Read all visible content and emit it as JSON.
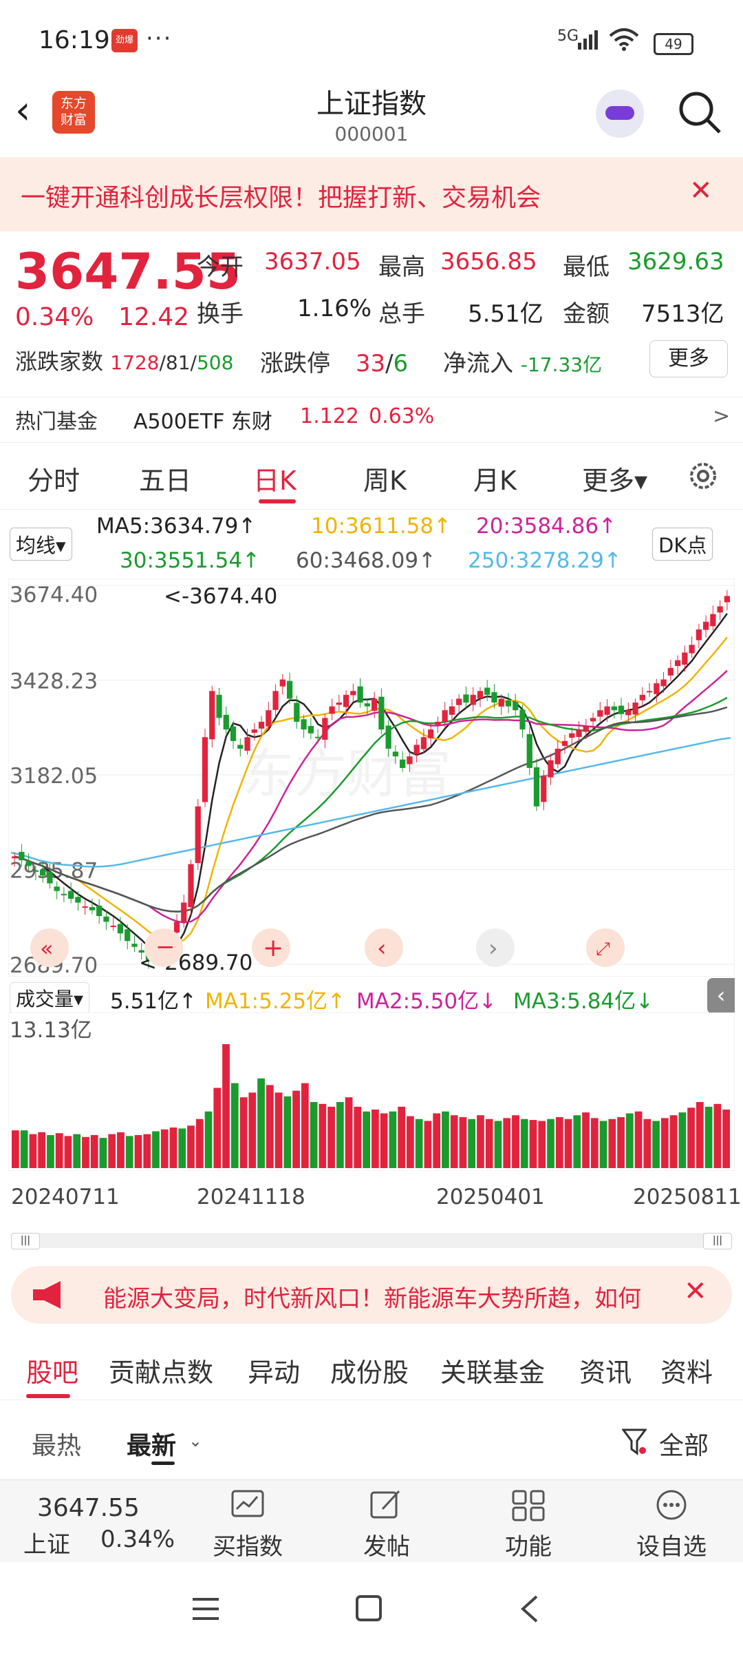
{
  "status": {
    "time": "16:19",
    "notif_badge": "劲爆",
    "dots": "···",
    "network": "5G",
    "battery": "49"
  },
  "header": {
    "title": "上证指数",
    "code": "000001",
    "logo": "东方\n财富"
  },
  "promo": {
    "text": "一键开通科创成长层权限！把握打新、交易机会"
  },
  "quote": {
    "price": "3647.55",
    "pct": "0.34%",
    "change": "12.42",
    "open_label": "今开",
    "open": "3637.05",
    "high_label": "最高",
    "high": "3656.85",
    "low_label": "最低",
    "low": "3629.63",
    "turnover_label": "换手",
    "turnover": "1.16%",
    "volume_label": "总手",
    "volume": "5.51亿",
    "amount_label": "金额",
    "amount": "7513亿",
    "breadth_label": "涨跌家数",
    "up": "1728",
    "flat": "81",
    "down": "508",
    "limit_label": "涨跌停",
    "limit_up": "33",
    "limit_down": "6",
    "netflow_label": "净流入",
    "netflow": "-17.33亿",
    "more": "更多"
  },
  "fund": {
    "label": "热门基金",
    "name": "A500ETF 东财",
    "price": "1.122",
    "pct": "0.63%",
    "arrow": ">"
  },
  "tabs": [
    "分时",
    "五日",
    "日K",
    "周K",
    "月K",
    "更多▾"
  ],
  "ma": {
    "selector": "均线▾",
    "ma5": "MA5:3634.79↑",
    "ma10": "10:3611.58↑",
    "ma20": "20:3584.86↑",
    "ma30": "30:3551.54↑",
    "ma60": "60:3468.09↑",
    "ma250": "250:3278.29↑",
    "dk": "DK点"
  },
  "chart_data": {
    "type": "candlestick",
    "y_ticks": [
      "3674.40",
      "3428.23",
      "3182.05",
      "2935.87",
      "2689.70"
    ],
    "ylim": [
      2689.7,
      3674.4
    ],
    "max_label": "<-3674.40",
    "min_label": "<-2689.70",
    "x_ticks": [
      "20240711",
      "20241118",
      "20250401",
      "20250811"
    ],
    "watermark": "东方财富",
    "close": [
      2970,
      2960,
      2945,
      2930,
      2920,
      2900,
      2880,
      2870,
      2860,
      2850,
      2840,
      2830,
      2815,
      2800,
      2790,
      2770,
      2750,
      2735,
      2720,
      2700,
      2710,
      2730,
      2760,
      2800,
      2850,
      2950,
      3100,
      3280,
      3400,
      3330,
      3300,
      3270,
      3250,
      3280,
      3300,
      3320,
      3350,
      3400,
      3430,
      3380,
      3320,
      3300,
      3290,
      3280,
      3330,
      3360,
      3370,
      3390,
      3400,
      3370,
      3360,
      3380,
      3300,
      3250,
      3230,
      3200,
      3230,
      3260,
      3280,
      3300,
      3320,
      3350,
      3360,
      3380,
      3370,
      3390,
      3400,
      3390,
      3370,
      3380,
      3360,
      3350,
      3300,
      3200,
      3100,
      3180,
      3220,
      3250,
      3270,
      3290,
      3300,
      3310,
      3330,
      3350,
      3360,
      3350,
      3340,
      3350,
      3370,
      3390,
      3400,
      3420,
      3430,
      3460,
      3480,
      3500,
      3520,
      3560,
      3580,
      3600,
      3620,
      3647
    ],
    "ma250": [
      2980,
      2975,
      2968,
      2960,
      2955,
      2950,
      2948,
      2946,
      2944,
      2943,
      2944,
      2946,
      2950,
      2955,
      2960,
      2965,
      2970,
      2975,
      2980,
      2985,
      2990,
      2995,
      3000,
      3005,
      3010,
      3015,
      3020,
      3025,
      3030,
      3035,
      3040,
      3045,
      3050,
      3055,
      3060,
      3065,
      3070,
      3075,
      3080,
      3085,
      3090,
      3095,
      3100,
      3105,
      3110,
      3115,
      3120,
      3125,
      3130,
      3135,
      3140,
      3145,
      3150,
      3155,
      3160,
      3165,
      3170,
      3175,
      3180,
      3185,
      3190,
      3195,
      3200,
      3205,
      3210,
      3215,
      3220,
      3225,
      3230,
      3235,
      3240,
      3245,
      3250,
      3255,
      3260,
      3265,
      3270,
      3275,
      3278
    ]
  },
  "vol": {
    "selector": "成交量▾",
    "current": "5.51亿↑",
    "ma1": "MA1:5.25亿↑",
    "ma2": "MA2:5.50亿↓",
    "ma3": "MA3:5.84亿↓",
    "max": "13.13亿",
    "values": [
      4,
      4,
      3.6,
      3.8,
      3.5,
      3.7,
      3.4,
      3.6,
      3.3,
      3.5,
      3.2,
      3.6,
      3.8,
      3.4,
      3.5,
      3.6,
      3.9,
      4.1,
      4.3,
      4.2,
      4.5,
      5.2,
      6,
      8.5,
      13.13,
      9,
      7.5,
      8,
      9.5,
      8.8,
      8,
      7.6,
      8.2,
      9,
      7,
      6.8,
      6.5,
      7,
      7.5,
      6.5,
      6,
      6.2,
      5.8,
      6,
      6.5,
      5.5,
      5.2,
      5,
      5.8,
      6,
      5.6,
      5.4,
      5.2,
      5.6,
      5.2,
      5,
      5.3,
      5.6,
      5.2,
      5.1,
      5,
      5.2,
      5.4,
      5.2,
      5.6,
      5.9,
      5.3,
      5,
      5.2,
      5.4,
      5.8,
      6,
      5.2,
      5,
      5.3,
      5.6,
      5.9,
      6.4,
      7,
      6.5,
      6.8,
      6.2
    ]
  },
  "ad": {
    "text": "能源大变局，时代新风口！新能源车大势所趋，如何"
  },
  "ftabs": [
    "股吧",
    "贡献点数",
    "异动",
    "成份股",
    "关联基金",
    "资讯",
    "资料"
  ],
  "subtabs": {
    "hot": "最热",
    "latest": "最新",
    "all": "全部"
  },
  "bottom": {
    "price": "3647.55",
    "name": "上证",
    "pct": "0.34%",
    "buy": "买指数",
    "post": "发帖",
    "func": "功能",
    "watch": "设自选"
  }
}
